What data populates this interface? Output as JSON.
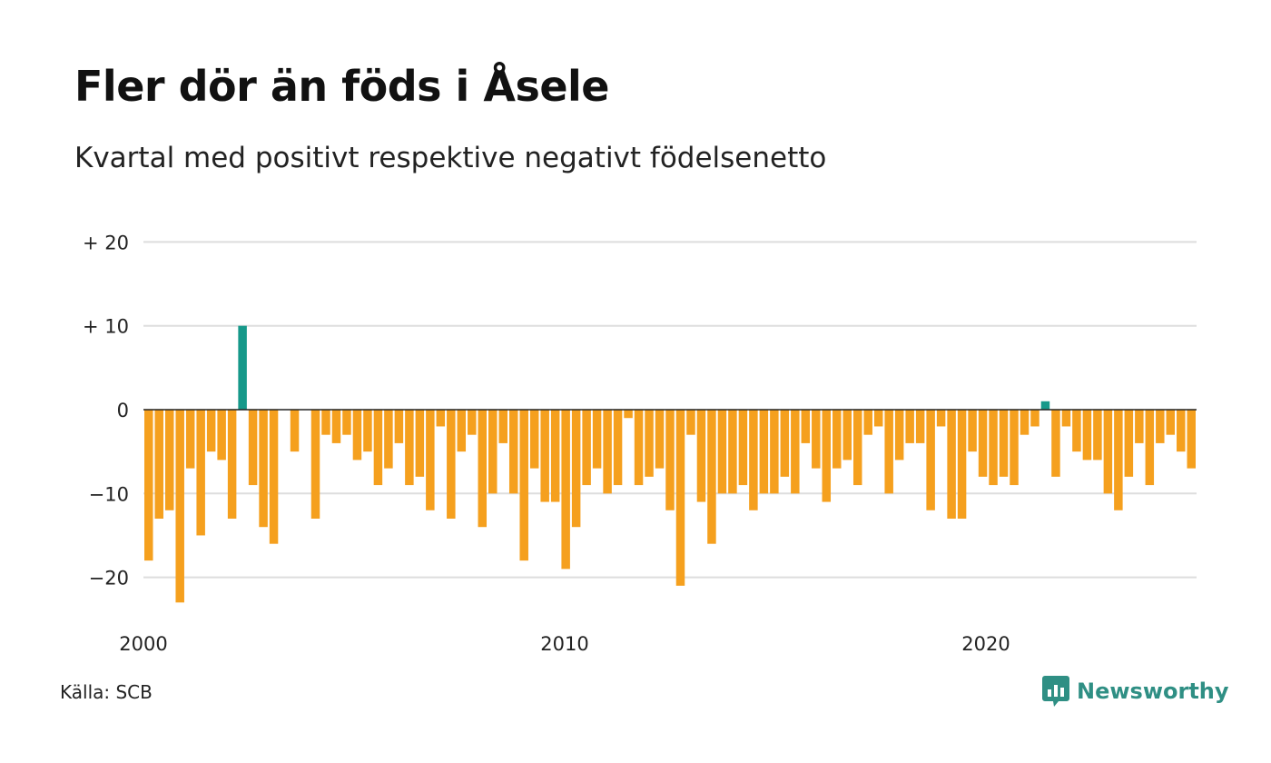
{
  "header": {
    "title": "Fler dör än föds i Åsele",
    "subtitle": "Kvartal med positivt respektive negativt födelsenetto"
  },
  "footer": {
    "source": "Källa: SCB",
    "brand": "Newsworthy",
    "brand_icon": "newsworthy-logo-icon"
  },
  "colors": {
    "positive": "#16998a",
    "negative": "#f5a01e",
    "grid": "#dddddd",
    "baseline": "#222222",
    "brand": "#2f8f84"
  },
  "chart_data": {
    "type": "bar",
    "title": "Fler dör än föds i Åsele",
    "subtitle": "Kvartal med positivt respektive negativt födelsenetto",
    "xlabel": "",
    "ylabel": "",
    "x_start": 2000,
    "x_end": 2025,
    "x_ticks": [
      {
        "value": 2000,
        "label": "2000"
      },
      {
        "value": 2010,
        "label": "2010"
      },
      {
        "value": 2020,
        "label": "2020"
      }
    ],
    "y_ticks": [
      {
        "value": 20,
        "label": "+ 20"
      },
      {
        "value": 10,
        "label": "+ 10"
      },
      {
        "value": 0,
        "label": "0"
      },
      {
        "value": -10,
        "label": "−10"
      },
      {
        "value": -20,
        "label": "−20"
      }
    ],
    "ylim": [
      -25,
      20
    ],
    "grid": true,
    "series": [
      {
        "name": "",
        "period": "quarter",
        "start": "2000 Q1",
        "values": [
          -18,
          -13,
          -12,
          -23,
          -7,
          -15,
          -5,
          -6,
          -13,
          10,
          -9,
          -14,
          -16,
          0,
          -5,
          0,
          -13,
          -3,
          -4,
          -3,
          -6,
          -5,
          -9,
          -7,
          -4,
          -9,
          -8,
          -12,
          -2,
          -13,
          -5,
          -3,
          -14,
          -10,
          -4,
          -10,
          -18,
          -7,
          -11,
          -11,
          -19,
          -14,
          -9,
          -7,
          -10,
          -9,
          -1,
          -9,
          -8,
          -7,
          -12,
          -21,
          -3,
          -11,
          -16,
          -10,
          -10,
          -9,
          -12,
          -10,
          -10,
          -8,
          -10,
          -4,
          -7,
          -11,
          -7,
          -6,
          -9,
          -3,
          -2,
          -10,
          -6,
          -4,
          -4,
          -12,
          -2,
          -13,
          -13,
          -5,
          -8,
          -9,
          -8,
          -9,
          -3,
          -2,
          1,
          -8,
          -2,
          -5,
          -6,
          -6,
          -10,
          -12,
          -8,
          -4,
          -9,
          -4,
          -3,
          -5,
          -7
        ]
      }
    ]
  }
}
